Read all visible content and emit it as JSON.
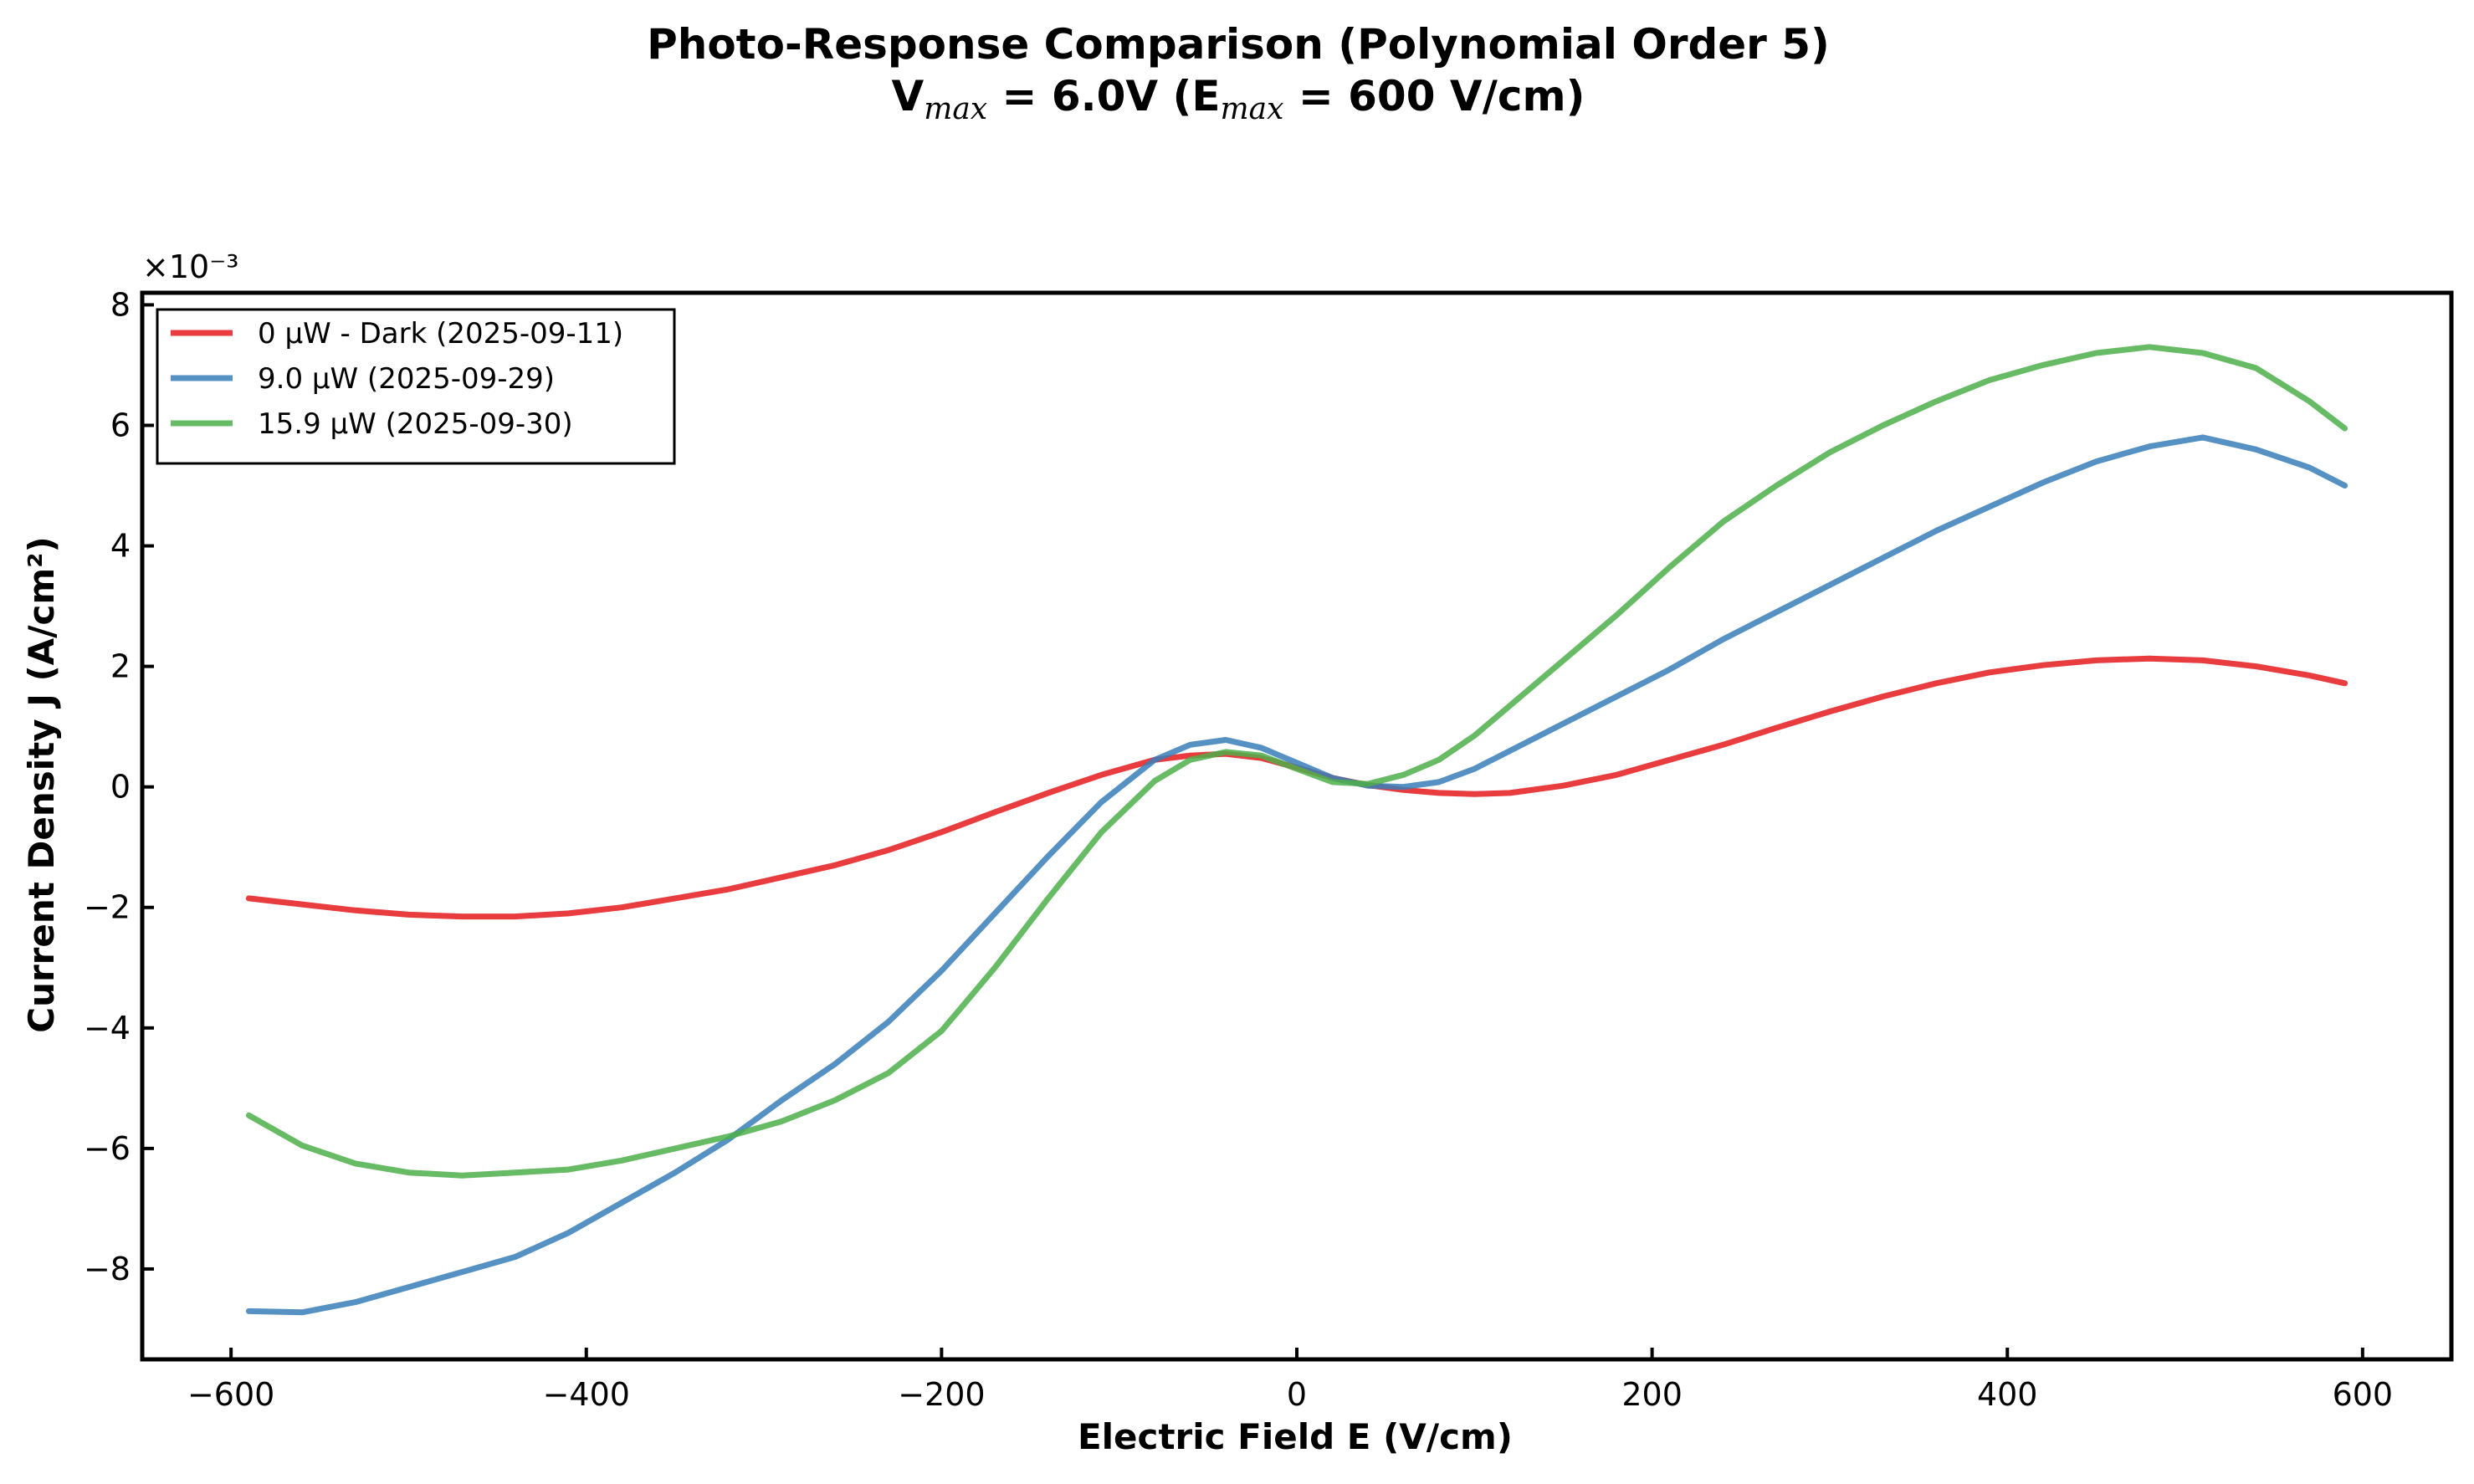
{
  "chart_data": {
    "type": "line",
    "title": "Photo-Response Comparison (Polynomial Order 5)",
    "subtitle": {
      "v_symbol": "V",
      "v_sub": "max",
      "middle": " = 6.0V (E",
      "e_sub": "max",
      "end": " = 600 V/cm)"
    },
    "xlabel": "Electric Field E (V/cm)",
    "ylabel": "Current Density J (A/cm²)",
    "y_offset_label": "×10⁻³",
    "xlim": [
      -650,
      650
    ],
    "ylim": [
      -9.5,
      8.2
    ],
    "xticks": [
      -600,
      -400,
      -200,
      0,
      200,
      400,
      600
    ],
    "xtick_labels": [
      "−600",
      "−400",
      "−200",
      "0",
      "200",
      "400",
      "600"
    ],
    "yticks": [
      -8,
      -6,
      -4,
      -2,
      0,
      2,
      4,
      6,
      8
    ],
    "ytick_labels": [
      "−8",
      "−6",
      "−4",
      "−2",
      "0",
      "2",
      "4",
      "6",
      "8"
    ],
    "grid": false,
    "legend_position": "upper-left",
    "x": [
      -590,
      -560,
      -530,
      -500,
      -470,
      -440,
      -410,
      -380,
      -350,
      -320,
      -290,
      -260,
      -230,
      -200,
      -170,
      -140,
      -110,
      -80,
      -60,
      -40,
      -20,
      0,
      20,
      40,
      60,
      80,
      100,
      120,
      150,
      180,
      210,
      240,
      270,
      300,
      330,
      360,
      390,
      420,
      450,
      480,
      510,
      540,
      570,
      590
    ],
    "series": [
      {
        "name": "0 µW - Dark (2025-09-11)",
        "color": "#e41a1c",
        "values": [
          -1.85,
          -1.95,
          -2.05,
          -2.12,
          -2.15,
          -2.15,
          -2.1,
          -2.0,
          -1.85,
          -1.7,
          -1.5,
          -1.3,
          -1.05,
          -0.75,
          -0.42,
          -0.1,
          0.2,
          0.45,
          0.52,
          0.55,
          0.48,
          0.32,
          0.15,
          0.03,
          -0.05,
          -0.1,
          -0.12,
          -0.1,
          0.02,
          0.2,
          0.45,
          0.7,
          0.98,
          1.25,
          1.5,
          1.72,
          1.9,
          2.02,
          2.1,
          2.13,
          2.1,
          2.0,
          1.85,
          1.72
        ]
      },
      {
        "name": "9.0 µW (2025-09-29)",
        "color": "#377eb8",
        "values": [
          -8.7,
          -8.72,
          -8.55,
          -8.3,
          -8.05,
          -7.8,
          -7.4,
          -6.9,
          -6.4,
          -5.85,
          -5.2,
          -4.6,
          -3.9,
          -3.05,
          -2.1,
          -1.15,
          -0.25,
          0.45,
          0.7,
          0.78,
          0.65,
          0.4,
          0.15,
          0.02,
          0.0,
          0.08,
          0.3,
          0.6,
          1.05,
          1.5,
          1.95,
          2.45,
          2.9,
          3.35,
          3.8,
          4.25,
          4.65,
          5.05,
          5.4,
          5.65,
          5.8,
          5.6,
          5.3,
          5.0
        ]
      },
      {
        "name": "15.9 µW (2025-09-30)",
        "color": "#4daf4a",
        "values": [
          -5.45,
          -5.95,
          -6.25,
          -6.4,
          -6.45,
          -6.4,
          -6.35,
          -6.2,
          -6.0,
          -5.8,
          -5.55,
          -5.2,
          -4.75,
          -4.05,
          -3.0,
          -1.85,
          -0.75,
          0.1,
          0.45,
          0.58,
          0.52,
          0.3,
          0.08,
          0.05,
          0.2,
          0.45,
          0.85,
          1.35,
          2.1,
          2.85,
          3.65,
          4.4,
          5.0,
          5.55,
          6.0,
          6.4,
          6.75,
          7.0,
          7.2,
          7.3,
          7.2,
          6.95,
          6.4,
          5.95
        ]
      }
    ]
  }
}
